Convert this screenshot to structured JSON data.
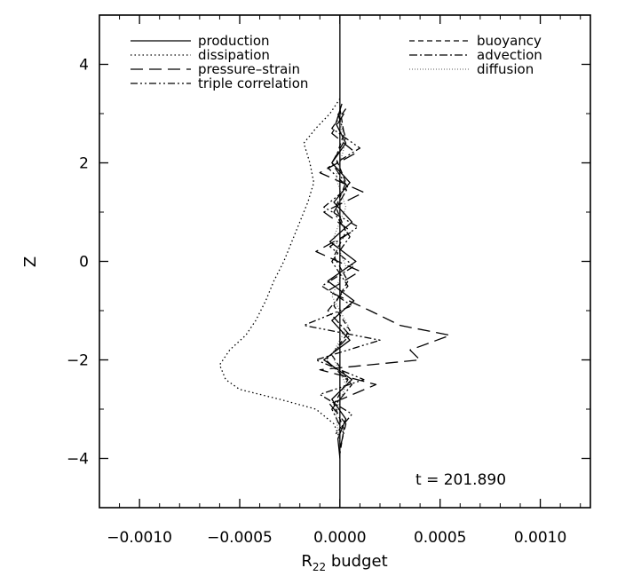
{
  "chart_data": {
    "type": "line",
    "title": "",
    "xlabel": "R",
    "xlabel_subscript": "22",
    "xlabel_suffix": " budget",
    "ylabel": "Z",
    "xlim": [
      -0.0012,
      0.00125
    ],
    "ylim": [
      -5,
      5
    ],
    "x_ticks": [
      -0.001,
      -0.0005,
      0.0,
      0.0005,
      0.001
    ],
    "x_tick_labels": [
      "−0.0010",
      "−0.0005",
      "0.0000",
      "0.0005",
      "0.0010"
    ],
    "y_ticks": [
      -4,
      -2,
      0,
      2,
      4
    ],
    "y_tick_labels": [
      "−4",
      "−2",
      "0",
      "2",
      "4"
    ],
    "grid": false,
    "legend_placement": "top",
    "annotation": "t = 201.890",
    "series": [
      {
        "name": "production",
        "dash": "solid",
        "color": "#000000",
        "points": [
          [
            1e-05,
            3.2
          ],
          [
            -2e-05,
            2.8
          ],
          [
            3e-05,
            2.4
          ],
          [
            -4e-05,
            2.0
          ],
          [
            5e-05,
            1.6
          ],
          [
            -3e-05,
            1.2
          ],
          [
            6e-05,
            0.8
          ],
          [
            -5e-05,
            0.4
          ],
          [
            8e-05,
            0.0
          ],
          [
            -6e-05,
            -0.4
          ],
          [
            7e-05,
            -0.8
          ],
          [
            -4e-05,
            -1.2
          ],
          [
            5e-05,
            -1.6
          ],
          [
            -8e-05,
            -2.0
          ],
          [
            6e-05,
            -2.4
          ],
          [
            -4e-05,
            -2.8
          ],
          [
            3e-05,
            -3.2
          ],
          [
            -1e-05,
            -3.6
          ],
          [
            0.0,
            -4.0
          ]
        ]
      },
      {
        "name": "dissipation",
        "dash": "dotted",
        "color": "#000000",
        "points": [
          [
            0.0,
            3.3
          ],
          [
            -5e-05,
            3.0
          ],
          [
            -0.00012,
            2.7
          ],
          [
            -0.00018,
            2.4
          ],
          [
            -0.00015,
            2.0
          ],
          [
            -0.00013,
            1.6
          ],
          [
            -0.00016,
            1.2
          ],
          [
            -0.0002,
            0.8
          ],
          [
            -0.00024,
            0.4
          ],
          [
            -0.00028,
            0.0
          ],
          [
            -0.00033,
            -0.4
          ],
          [
            -0.00037,
            -0.8
          ],
          [
            -0.00042,
            -1.2
          ],
          [
            -0.00047,
            -1.5
          ],
          [
            -0.00055,
            -1.8
          ],
          [
            -0.0006,
            -2.1
          ],
          [
            -0.00057,
            -2.4
          ],
          [
            -0.0005,
            -2.6
          ],
          [
            -0.0003,
            -2.8
          ],
          [
            -0.00012,
            -3.0
          ],
          [
            -3e-05,
            -3.3
          ],
          [
            0.0,
            -3.6
          ]
        ]
      },
      {
        "name": "pressure–strain",
        "dash": "long-dash",
        "color": "#000000",
        "points": [
          [
            2e-05,
            3.0
          ],
          [
            -4e-05,
            2.6
          ],
          [
            8e-05,
            2.2
          ],
          [
            -0.0001,
            1.8
          ],
          [
            0.00012,
            1.4
          ],
          [
            -8e-05,
            1.0
          ],
          [
            6e-05,
            0.6
          ],
          [
            -0.00012,
            0.2
          ],
          [
            0.0001,
            -0.2
          ],
          [
            -6e-05,
            -0.6
          ],
          [
            0.00015,
            -1.0
          ],
          [
            0.0003,
            -1.3
          ],
          [
            0.00055,
            -1.5
          ],
          [
            0.00035,
            -1.8
          ],
          [
            0.0004,
            -2.0
          ],
          [
            -0.0001,
            -2.2
          ],
          [
            0.00018,
            -2.5
          ],
          [
            -5e-05,
            -2.9
          ],
          [
            3e-05,
            -3.3
          ],
          [
            0.0,
            -3.8
          ]
        ]
      },
      {
        "name": "triple correlation",
        "dash": "dash-dot-dot",
        "color": "#000000",
        "points": [
          [
            3e-05,
            3.1
          ],
          [
            -4e-05,
            2.7
          ],
          [
            0.0001,
            2.3
          ],
          [
            -6e-05,
            1.9
          ],
          [
            4e-05,
            1.5
          ],
          [
            -8e-05,
            1.1
          ],
          [
            9e-05,
            0.7
          ],
          [
            -5e-05,
            0.3
          ],
          [
            7e-05,
            -0.1
          ],
          [
            -9e-05,
            -0.5
          ],
          [
            6e-05,
            -0.9
          ],
          [
            -0.00018,
            -1.3
          ],
          [
            0.0002,
            -1.6
          ],
          [
            -0.00012,
            -2.0
          ],
          [
            0.00012,
            -2.4
          ],
          [
            -0.0001,
            -2.7
          ],
          [
            6e-05,
            -3.1
          ],
          [
            -2e-05,
            -3.5
          ]
        ]
      },
      {
        "name": "buoyancy",
        "dash": "short-dash",
        "color": "#000000",
        "points": [
          [
            0.0,
            3.1
          ],
          [
            2e-05,
            2.6
          ],
          [
            -2e-05,
            2.1
          ],
          [
            3e-05,
            1.6
          ],
          [
            -2e-05,
            1.1
          ],
          [
            3e-05,
            0.6
          ],
          [
            -3e-05,
            0.1
          ],
          [
            4e-05,
            -0.4
          ],
          [
            -3e-05,
            -0.9
          ],
          [
            5e-05,
            -1.4
          ],
          [
            -4e-05,
            -1.9
          ],
          [
            4e-05,
            -2.4
          ],
          [
            -3e-05,
            -2.9
          ],
          [
            2e-05,
            -3.4
          ],
          [
            0.0,
            -3.9
          ]
        ]
      },
      {
        "name": "advection",
        "dash": "dash-dot",
        "color": "#000000",
        "points": [
          [
            -1e-05,
            3.0
          ],
          [
            3e-05,
            2.5
          ],
          [
            -4e-05,
            2.0
          ],
          [
            4e-05,
            1.5
          ],
          [
            -3e-05,
            1.0
          ],
          [
            5e-05,
            0.5
          ],
          [
            -4e-05,
            0.0
          ],
          [
            4e-05,
            -0.5
          ],
          [
            -6e-05,
            -1.0
          ],
          [
            5e-05,
            -1.5
          ],
          [
            -7e-05,
            -2.0
          ],
          [
            6e-05,
            -2.5
          ],
          [
            -4e-05,
            -3.0
          ],
          [
            2e-05,
            -3.5
          ]
        ]
      },
      {
        "name": "diffusion",
        "dash": "fine-dotted",
        "color": "#777777",
        "points": [
          [
            0.0,
            2.9
          ],
          [
            2e-05,
            2.3
          ],
          [
            -2e-05,
            1.7
          ],
          [
            3e-05,
            1.1
          ],
          [
            -3e-05,
            0.5
          ],
          [
            3e-05,
            -0.1
          ],
          [
            -4e-05,
            -0.7
          ],
          [
            4e-05,
            -1.3
          ],
          [
            -4e-05,
            -1.9
          ],
          [
            3e-05,
            -2.5
          ],
          [
            -2e-05,
            -3.1
          ],
          [
            0.0,
            -3.7
          ]
        ]
      }
    ]
  }
}
